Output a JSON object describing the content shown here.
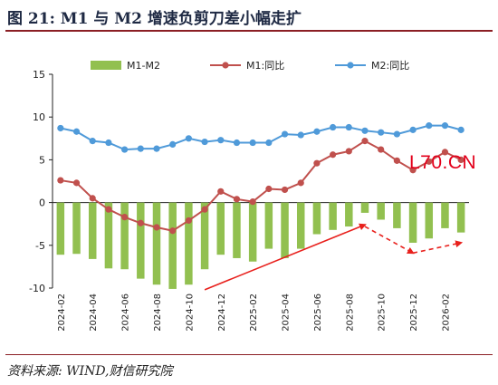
{
  "figure": {
    "title": "图 21:  M1 与 M2 增速负剪刀差小幅走扩",
    "source": "资料来源: WIND,财信研究院",
    "watermark": "L70.CN"
  },
  "colors": {
    "bar": "#92c050",
    "m1": "#c0504d",
    "m2": "#4f9ad9",
    "arrow": "#e8201c",
    "title_rule": "#8b1f24"
  },
  "chart_data": {
    "type": "bar+line",
    "ylim": [
      -10,
      15
    ],
    "yticks": [
      -10,
      -5,
      0,
      5,
      10,
      15
    ],
    "x": [
      "2024-02",
      "2024-03",
      "2024-04",
      "2024-05",
      "2024-06",
      "2024-07",
      "2024-08",
      "2024-09",
      "2024-10",
      "2024-11",
      "2024-12",
      "2025-01",
      "2025-02",
      "2025-03",
      "2025-04",
      "2025-05",
      "2025-06",
      "2025-07",
      "2025-08",
      "2025-09",
      "2025-10",
      "2025-11",
      "2025-12",
      "2026-01",
      "2026-02",
      "2026-03"
    ],
    "xtick_labels": [
      "2024-02",
      "2024-04",
      "2024-06",
      "2024-08",
      "2024-10",
      "2024-12",
      "2025-02",
      "2025-04",
      "2025-06",
      "2025-08",
      "2025-10",
      "2025-12",
      "2026-02"
    ],
    "series": [
      {
        "name": "M1-M2",
        "kind": "bar",
        "values": [
          -6.1,
          -6.0,
          -6.6,
          -7.7,
          -7.8,
          -8.9,
          -9.6,
          -10.1,
          -9.6,
          -7.8,
          -6.1,
          -6.5,
          -6.9,
          -5.4,
          -6.5,
          -5.4,
          -3.7,
          -3.2,
          -2.8,
          -1.2,
          -2.0,
          -3.0,
          -4.7,
          -4.2,
          -3.0,
          -3.5
        ]
      },
      {
        "name": "M1:同比",
        "kind": "line",
        "values": [
          2.6,
          2.3,
          0.5,
          -0.8,
          -1.7,
          -2.4,
          -2.9,
          -3.3,
          -2.1,
          -0.8,
          1.3,
          0.4,
          0.1,
          1.6,
          1.5,
          2.3,
          4.6,
          5.6,
          6.0,
          7.2,
          6.2,
          4.9,
          3.8,
          4.8,
          5.9,
          5.0
        ]
      },
      {
        "name": "M2:同比",
        "kind": "line",
        "values": [
          8.7,
          8.3,
          7.2,
          7.0,
          6.2,
          6.3,
          6.3,
          6.8,
          7.5,
          7.1,
          7.3,
          7.0,
          7.0,
          7.0,
          8.0,
          7.9,
          8.3,
          8.8,
          8.8,
          8.4,
          8.2,
          8.0,
          8.5,
          9.0,
          9.0,
          8.5
        ]
      }
    ],
    "annotations": [
      {
        "type": "arrow",
        "style": "solid",
        "from": [
          "2024-11",
          -10.2
        ],
        "to": [
          "2025-09",
          -2.6
        ]
      },
      {
        "type": "arrow",
        "style": "dashed",
        "from": [
          "2025-09",
          -2.8
        ],
        "to": [
          "2025-12",
          -5.9
        ]
      },
      {
        "type": "arrow",
        "style": "dashed",
        "from": [
          "2025-12",
          -5.9
        ],
        "to": [
          "2026-03",
          -4.7
        ]
      }
    ],
    "legend": "top",
    "grid": false
  }
}
